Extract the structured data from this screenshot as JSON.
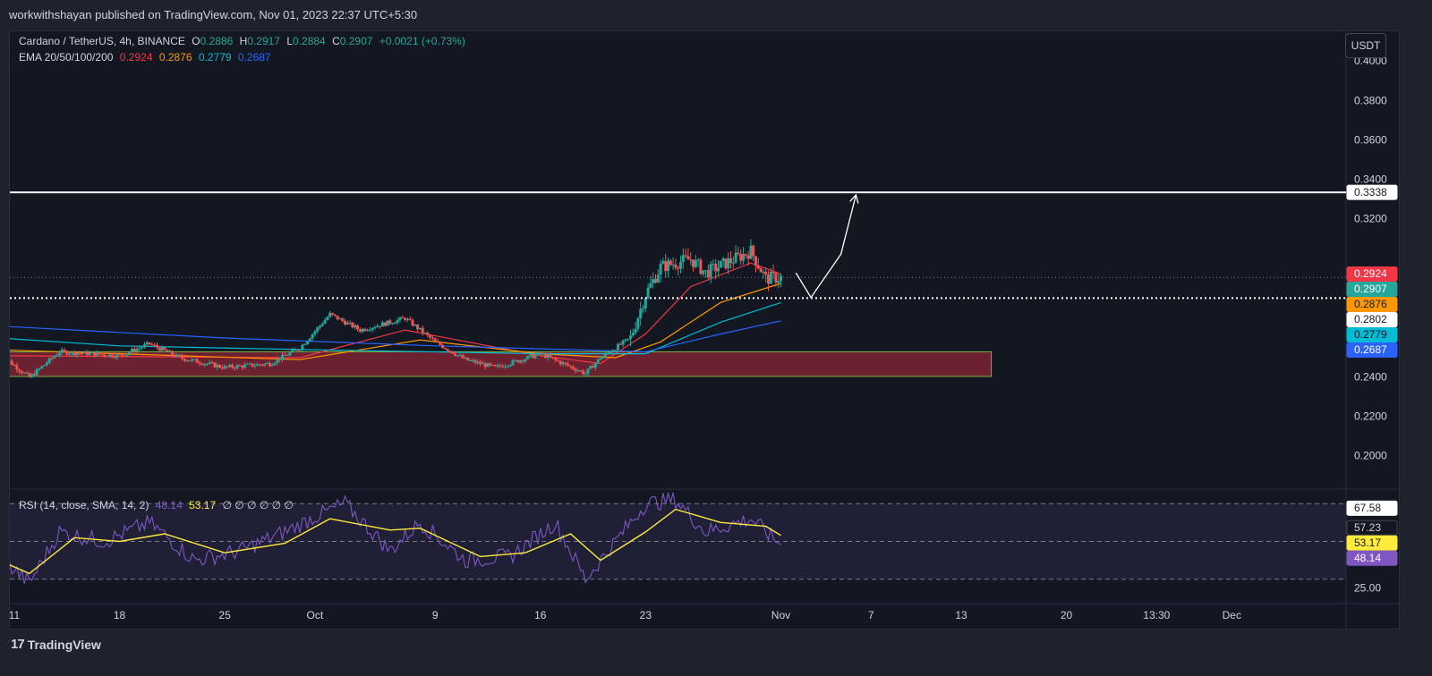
{
  "header": {
    "published_text": "workwithshayan published on TradingView.com, Nov 01, 2023 22:37 UTC+5:30"
  },
  "legend": {
    "symbol": "Cardano / TetherUS, 4h, BINANCE",
    "o_label": "O",
    "o_value": "0.2886",
    "h_label": "H",
    "h_value": "0.2917",
    "l_label": "L",
    "l_value": "0.2884",
    "c_label": "C",
    "c_value": "0.2907",
    "change": "+0.0021 (+0.73%)",
    "ema_label": "EMA 20/50/100/200",
    "ema_values": [
      "0.2924",
      "0.2876",
      "0.2779",
      "0.2687"
    ],
    "rsi_label": "RSI (14, close, SMA, 14, 2)",
    "rsi_values": [
      "48.14",
      "53.17"
    ],
    "rsi_extra": "∅ ∅ ∅ ∅ ∅ ∅"
  },
  "currency_button": "USDT",
  "brand": "TradingView",
  "colors": {
    "up": "#26a69a",
    "down": "#ef5350",
    "ema20": "#f23645",
    "ema50": "#ff9800",
    "ema100": "#00bcd4",
    "ema200": "#2962ff",
    "rsi": "#7e57c2",
    "rsi_ma": "#ffeb3b",
    "zone": "#8a2635"
  },
  "chart_data": {
    "type": "candlestick",
    "title": "Cardano / TetherUS, 4h, BINANCE",
    "price_axis": {
      "ylim": [
        0.1834,
        0.4154
      ],
      "ticks": [
        "0.4000",
        "0.3800",
        "0.3600",
        "0.3400",
        "0.3200",
        "0.2400",
        "0.2200",
        "0.2000"
      ],
      "badges": [
        {
          "value": "0.3338",
          "price": 0.3338,
          "color": "#ffffff",
          "text_color": "#131722"
        },
        {
          "value": "0.2924",
          "price": 0.2924,
          "color": "#f23645",
          "text_color": "#ffffff"
        },
        {
          "value": "0.2907",
          "price": 0.2907,
          "color": "#26a69a",
          "text_color": "#ffffff"
        },
        {
          "value": "0.2876",
          "price": 0.2876,
          "color": "#ff9800",
          "text_color": "#131722"
        },
        {
          "value": "0.2802",
          "price": 0.2802,
          "color": "#ffffff",
          "text_color": "#131722"
        },
        {
          "value": "0.2779",
          "price": 0.2779,
          "color": "#00bcd4",
          "text_color": "#131722"
        },
        {
          "value": "0.2687",
          "price": 0.2687,
          "color": "#2962ff",
          "text_color": "#ffffff"
        }
      ]
    },
    "time_axis": {
      "range": [
        "2023-09-11",
        "2023-12-03"
      ],
      "ticks": [
        {
          "label": "11",
          "date": "2023-09-11"
        },
        {
          "label": "18",
          "date": "2023-09-18"
        },
        {
          "label": "25",
          "date": "2023-09-25"
        },
        {
          "label": "Oct",
          "date": "2023-10-01"
        },
        {
          "label": "9",
          "date": "2023-10-09"
        },
        {
          "label": "16",
          "date": "2023-10-16"
        },
        {
          "label": "23",
          "date": "2023-10-23"
        },
        {
          "label": "Nov",
          "date": "2023-11-01"
        },
        {
          "label": "7",
          "date": "2023-11-07"
        },
        {
          "label": "13",
          "date": "2023-11-13"
        },
        {
          "label": "20",
          "date": "2023-11-20"
        },
        {
          "label": "13:30",
          "date": "2023-11-26"
        },
        {
          "label": "Dec",
          "date": "2023-12-01"
        }
      ]
    },
    "resistance_line": 0.3338,
    "support_line": 0.2802,
    "last_price": 0.2907,
    "demand_zone": {
      "from": "2023-09-10",
      "to": "2023-11-15",
      "top": 0.253,
      "bottom": 0.2405
    },
    "projection_path": [
      {
        "date": "2023-11-02",
        "price": 0.293
      },
      {
        "date": "2023-11-03",
        "price": 0.2805
      },
      {
        "date": "2023-11-05",
        "price": 0.3025
      },
      {
        "date": "2023-11-06",
        "price": 0.3325
      }
    ],
    "price_anchors": [
      {
        "date": "2023-09-10",
        "price": 0.252
      },
      {
        "date": "2023-09-12",
        "price": 0.24
      },
      {
        "date": "2023-09-14",
        "price": 0.253
      },
      {
        "date": "2023-09-18",
        "price": 0.251
      },
      {
        "date": "2023-09-20",
        "price": 0.257
      },
      {
        "date": "2023-09-22",
        "price": 0.25
      },
      {
        "date": "2023-09-25",
        "price": 0.245
      },
      {
        "date": "2023-09-28",
        "price": 0.247
      },
      {
        "date": "2023-09-30",
        "price": 0.255
      },
      {
        "date": "2023-10-02",
        "price": 0.272
      },
      {
        "date": "2023-10-04",
        "price": 0.264
      },
      {
        "date": "2023-10-07",
        "price": 0.27
      },
      {
        "date": "2023-10-09",
        "price": 0.258
      },
      {
        "date": "2023-10-11",
        "price": 0.249
      },
      {
        "date": "2023-10-13",
        "price": 0.245
      },
      {
        "date": "2023-10-16",
        "price": 0.252
      },
      {
        "date": "2023-10-19",
        "price": 0.242
      },
      {
        "date": "2023-10-20",
        "price": 0.25
      },
      {
        "date": "2023-10-22",
        "price": 0.26
      },
      {
        "date": "2023-10-23",
        "price": 0.282
      },
      {
        "date": "2023-10-24",
        "price": 0.296
      },
      {
        "date": "2023-10-26",
        "price": 0.3
      },
      {
        "date": "2023-10-27",
        "price": 0.293
      },
      {
        "date": "2023-10-30",
        "price": 0.304
      },
      {
        "date": "2023-10-31",
        "price": 0.29
      },
      {
        "date": "2023-11-01",
        "price": 0.2907
      }
    ],
    "ema_lines": [
      {
        "name": "EMA 20",
        "color": "#f23645",
        "points": [
          {
            "date": "2023-09-10",
            "price": 0.251
          },
          {
            "date": "2023-09-30",
            "price": 0.25
          },
          {
            "date": "2023-10-07",
            "price": 0.264
          },
          {
            "date": "2023-10-16",
            "price": 0.251
          },
          {
            "date": "2023-10-20",
            "price": 0.247
          },
          {
            "date": "2023-10-23",
            "price": 0.262
          },
          {
            "date": "2023-10-26",
            "price": 0.286
          },
          {
            "date": "2023-10-30",
            "price": 0.298
          },
          {
            "date": "2023-11-01",
            "price": 0.2924
          }
        ]
      },
      {
        "name": "EMA 50",
        "color": "#ff9800",
        "points": [
          {
            "date": "2023-09-10",
            "price": 0.254
          },
          {
            "date": "2023-09-30",
            "price": 0.249
          },
          {
            "date": "2023-10-08",
            "price": 0.259
          },
          {
            "date": "2023-10-16",
            "price": 0.252
          },
          {
            "date": "2023-10-21",
            "price": 0.25
          },
          {
            "date": "2023-10-24",
            "price": 0.258
          },
          {
            "date": "2023-10-28",
            "price": 0.278
          },
          {
            "date": "2023-11-01",
            "price": 0.2876
          }
        ]
      },
      {
        "name": "EMA 100",
        "color": "#00bcd4",
        "points": [
          {
            "date": "2023-09-10",
            "price": 0.26
          },
          {
            "date": "2023-09-18",
            "price": 0.256
          },
          {
            "date": "2023-10-01",
            "price": 0.254
          },
          {
            "date": "2023-10-16",
            "price": 0.252
          },
          {
            "date": "2023-10-23",
            "price": 0.252
          },
          {
            "date": "2023-10-28",
            "price": 0.268
          },
          {
            "date": "2023-11-01",
            "price": 0.2779
          }
        ]
      },
      {
        "name": "EMA 200",
        "color": "#2962ff",
        "points": [
          {
            "date": "2023-09-10",
            "price": 0.266
          },
          {
            "date": "2023-09-25",
            "price": 0.26
          },
          {
            "date": "2023-10-09",
            "price": 0.256
          },
          {
            "date": "2023-10-23",
            "price": 0.253
          },
          {
            "date": "2023-10-28",
            "price": 0.262
          },
          {
            "date": "2023-11-01",
            "price": 0.2687
          }
        ]
      }
    ],
    "rsi_panel": {
      "ylim": [
        17.1,
        77.2
      ],
      "ticks": [
        "25.00"
      ],
      "bands": [
        30,
        50,
        70
      ],
      "badges": [
        {
          "value": "67.58",
          "level": 67.58,
          "color": "#ffffff",
          "text_color": "#131722"
        },
        {
          "value": "57.23",
          "level": 57.23,
          "color": "#131722",
          "text_color": "#d1d4dc"
        },
        {
          "value": "53.17",
          "level": 53.17,
          "color": "#ffeb3b",
          "text_color": "#131722"
        },
        {
          "value": "48.14",
          "level": 48.14,
          "color": "#7e57c2",
          "text_color": "#ffffff"
        }
      ],
      "rsi_anchors": [
        {
          "date": "2023-09-10",
          "rsi": 42
        },
        {
          "date": "2023-09-12",
          "rsi": 28
        },
        {
          "date": "2023-09-14",
          "rsi": 55
        },
        {
          "date": "2023-09-17",
          "rsi": 50
        },
        {
          "date": "2023-09-20",
          "rsi": 60
        },
        {
          "date": "2023-09-23",
          "rsi": 40
        },
        {
          "date": "2023-09-26",
          "rsi": 45
        },
        {
          "date": "2023-09-29",
          "rsi": 55
        },
        {
          "date": "2023-10-01",
          "rsi": 63
        },
        {
          "date": "2023-10-03",
          "rsi": 70
        },
        {
          "date": "2023-10-06",
          "rsi": 45
        },
        {
          "date": "2023-10-08",
          "rsi": 60
        },
        {
          "date": "2023-10-11",
          "rsi": 40
        },
        {
          "date": "2023-10-14",
          "rsi": 42
        },
        {
          "date": "2023-10-17",
          "rsi": 60
        },
        {
          "date": "2023-10-19",
          "rsi": 30
        },
        {
          "date": "2023-10-21",
          "rsi": 50
        },
        {
          "date": "2023-10-23",
          "rsi": 70
        },
        {
          "date": "2023-10-25",
          "rsi": 72
        },
        {
          "date": "2023-10-27",
          "rsi": 55
        },
        {
          "date": "2023-10-30",
          "rsi": 62
        },
        {
          "date": "2023-11-01",
          "rsi": 48.14
        }
      ],
      "rsi_ma_anchors": [
        {
          "date": "2023-09-10",
          "rsi": 40
        },
        {
          "date": "2023-09-12",
          "rsi": 33
        },
        {
          "date": "2023-09-15",
          "rsi": 52
        },
        {
          "date": "2023-09-18",
          "rsi": 50
        },
        {
          "date": "2023-09-21",
          "rsi": 54
        },
        {
          "date": "2023-09-25",
          "rsi": 44
        },
        {
          "date": "2023-09-29",
          "rsi": 49
        },
        {
          "date": "2023-10-02",
          "rsi": 62
        },
        {
          "date": "2023-10-06",
          "rsi": 56
        },
        {
          "date": "2023-10-08",
          "rsi": 57
        },
        {
          "date": "2023-10-12",
          "rsi": 42
        },
        {
          "date": "2023-10-15",
          "rsi": 44
        },
        {
          "date": "2023-10-18",
          "rsi": 54
        },
        {
          "date": "2023-10-20",
          "rsi": 40
        },
        {
          "date": "2023-10-23",
          "rsi": 55
        },
        {
          "date": "2023-10-25",
          "rsi": 67
        },
        {
          "date": "2023-10-28",
          "rsi": 60
        },
        {
          "date": "2023-10-31",
          "rsi": 58
        },
        {
          "date": "2023-11-01",
          "rsi": 53.17
        }
      ]
    }
  }
}
